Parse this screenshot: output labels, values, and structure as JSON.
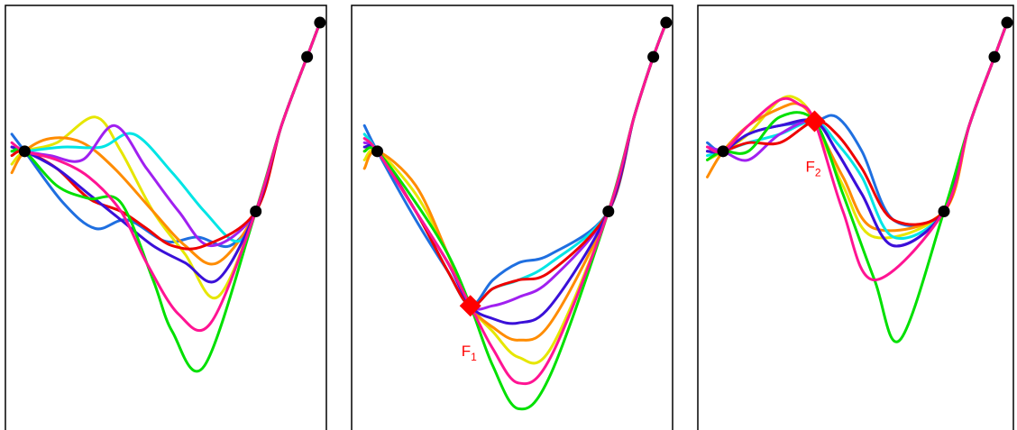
{
  "chart_data": [
    {
      "type": "line",
      "title": "",
      "xlabel": "",
      "ylabel": "",
      "xlim": [
        0,
        1
      ],
      "ylim": [
        0,
        1
      ],
      "grid": false,
      "observations": [
        {
          "x": 0.06,
          "y": 0.66
        },
        {
          "x": 0.78,
          "y": 0.52
        },
        {
          "x": 0.94,
          "y": 0.88
        },
        {
          "x": 0.98,
          "y": 0.96
        }
      ],
      "fantasized": [],
      "series": [
        {
          "color": "#1f6fe0",
          "x": [
            0.02,
            0.06,
            0.18,
            0.28,
            0.38,
            0.5,
            0.6,
            0.7,
            0.78,
            0.86,
            0.94,
            0.98
          ],
          "y": [
            0.7,
            0.66,
            0.54,
            0.48,
            0.5,
            0.45,
            0.46,
            0.44,
            0.52,
            0.72,
            0.88,
            0.96
          ]
        },
        {
          "color": "#e6e600",
          "x": [
            0.02,
            0.06,
            0.16,
            0.28,
            0.36,
            0.46,
            0.56,
            0.66,
            0.78,
            0.86,
            0.94,
            0.98
          ],
          "y": [
            0.63,
            0.66,
            0.68,
            0.74,
            0.66,
            0.52,
            0.42,
            0.32,
            0.52,
            0.72,
            0.88,
            0.96
          ]
        },
        {
          "color": "#ff8c00",
          "x": [
            0.02,
            0.06,
            0.14,
            0.24,
            0.34,
            0.46,
            0.56,
            0.66,
            0.78,
            0.86,
            0.94,
            0.98
          ],
          "y": [
            0.61,
            0.66,
            0.69,
            0.68,
            0.62,
            0.52,
            0.44,
            0.4,
            0.52,
            0.72,
            0.88,
            0.96
          ]
        },
        {
          "color": "#00e5e5",
          "x": [
            0.02,
            0.06,
            0.18,
            0.3,
            0.4,
            0.52,
            0.62,
            0.72,
            0.78,
            0.86,
            0.94,
            0.98
          ],
          "y": [
            0.66,
            0.66,
            0.67,
            0.67,
            0.7,
            0.61,
            0.52,
            0.45,
            0.52,
            0.72,
            0.88,
            0.96
          ]
        },
        {
          "color": "#a020f0",
          "x": [
            0.02,
            0.06,
            0.14,
            0.24,
            0.34,
            0.44,
            0.54,
            0.64,
            0.78,
            0.86,
            0.94,
            0.98
          ],
          "y": [
            0.67,
            0.66,
            0.65,
            0.64,
            0.72,
            0.62,
            0.52,
            0.44,
            0.52,
            0.72,
            0.88,
            0.96
          ]
        },
        {
          "color": "#ee0000",
          "x": [
            0.02,
            0.06,
            0.16,
            0.26,
            0.36,
            0.44,
            0.52,
            0.62,
            0.78,
            0.86,
            0.94,
            0.98
          ],
          "y": [
            0.65,
            0.66,
            0.62,
            0.55,
            0.52,
            0.48,
            0.44,
            0.44,
            0.52,
            0.72,
            0.88,
            0.96
          ]
        },
        {
          "color": "#3a10d8",
          "x": [
            0.02,
            0.06,
            0.16,
            0.26,
            0.36,
            0.46,
            0.56,
            0.66,
            0.78,
            0.86,
            0.94,
            0.98
          ],
          "y": [
            0.67,
            0.66,
            0.62,
            0.56,
            0.5,
            0.44,
            0.4,
            0.36,
            0.52,
            0.72,
            0.88,
            0.96
          ]
        },
        {
          "color": "#00e000",
          "x": [
            0.02,
            0.06,
            0.16,
            0.26,
            0.36,
            0.46,
            0.52,
            0.62,
            0.78,
            0.86,
            0.94,
            0.98
          ],
          "y": [
            0.66,
            0.66,
            0.58,
            0.55,
            0.54,
            0.36,
            0.24,
            0.16,
            0.52,
            0.72,
            0.88,
            0.96
          ]
        },
        {
          "color": "#ff1493",
          "x": [
            0.02,
            0.06,
            0.16,
            0.26,
            0.36,
            0.44,
            0.54,
            0.64,
            0.78,
            0.86,
            0.94,
            0.98
          ],
          "y": [
            0.68,
            0.66,
            0.64,
            0.6,
            0.52,
            0.4,
            0.28,
            0.26,
            0.52,
            0.72,
            0.88,
            0.96
          ]
        }
      ]
    },
    {
      "type": "line",
      "title": "",
      "xlabel": "",
      "ylabel": "",
      "xlim": [
        0,
        1
      ],
      "ylim": [
        0,
        1
      ],
      "grid": false,
      "observations": [
        {
          "x": 0.08,
          "y": 0.66
        },
        {
          "x": 0.8,
          "y": 0.52
        },
        {
          "x": 0.94,
          "y": 0.88
        },
        {
          "x": 0.98,
          "y": 0.96
        }
      ],
      "fantasized": [
        {
          "x": 0.37,
          "y": 0.3,
          "label_main": "F",
          "label_sub": "1"
        }
      ],
      "series": [
        {
          "color": "#1f6fe0",
          "x": [
            0.04,
            0.08,
            0.2,
            0.3,
            0.37,
            0.44,
            0.52,
            0.62,
            0.8,
            0.88,
            0.94,
            0.98
          ],
          "y": [
            0.72,
            0.66,
            0.5,
            0.38,
            0.3,
            0.36,
            0.4,
            0.42,
            0.52,
            0.74,
            0.88,
            0.96
          ]
        },
        {
          "color": "#e6e600",
          "x": [
            0.04,
            0.08,
            0.2,
            0.3,
            0.37,
            0.44,
            0.52,
            0.62,
            0.8,
            0.88,
            0.94,
            0.98
          ],
          "y": [
            0.64,
            0.66,
            0.56,
            0.42,
            0.3,
            0.24,
            0.18,
            0.2,
            0.52,
            0.74,
            0.88,
            0.96
          ]
        },
        {
          "color": "#ff8c00",
          "x": [
            0.04,
            0.08,
            0.2,
            0.3,
            0.37,
            0.44,
            0.52,
            0.62,
            0.8,
            0.88,
            0.94,
            0.98
          ],
          "y": [
            0.62,
            0.66,
            0.58,
            0.42,
            0.3,
            0.25,
            0.22,
            0.26,
            0.52,
            0.74,
            0.88,
            0.96
          ]
        },
        {
          "color": "#00e5e5",
          "x": [
            0.04,
            0.08,
            0.2,
            0.3,
            0.37,
            0.44,
            0.52,
            0.62,
            0.8,
            0.88,
            0.94,
            0.98
          ],
          "y": [
            0.7,
            0.66,
            0.52,
            0.38,
            0.3,
            0.34,
            0.36,
            0.4,
            0.52,
            0.74,
            0.88,
            0.96
          ]
        },
        {
          "color": "#a020f0",
          "x": [
            0.04,
            0.08,
            0.2,
            0.3,
            0.37,
            0.44,
            0.52,
            0.62,
            0.8,
            0.88,
            0.94,
            0.98
          ],
          "y": [
            0.68,
            0.66,
            0.52,
            0.4,
            0.3,
            0.3,
            0.32,
            0.36,
            0.52,
            0.74,
            0.88,
            0.96
          ]
        },
        {
          "color": "#ee0000",
          "x": [
            0.04,
            0.08,
            0.2,
            0.3,
            0.37,
            0.44,
            0.52,
            0.62,
            0.8,
            0.88,
            0.94,
            0.98
          ],
          "y": [
            0.66,
            0.66,
            0.52,
            0.38,
            0.3,
            0.34,
            0.36,
            0.38,
            0.52,
            0.74,
            0.88,
            0.96
          ]
        },
        {
          "color": "#3a10d8",
          "x": [
            0.04,
            0.08,
            0.2,
            0.3,
            0.37,
            0.44,
            0.52,
            0.62,
            0.8,
            0.88,
            0.94,
            0.98
          ],
          "y": [
            0.67,
            0.66,
            0.52,
            0.4,
            0.3,
            0.27,
            0.26,
            0.3,
            0.52,
            0.74,
            0.88,
            0.96
          ]
        },
        {
          "color": "#00e000",
          "x": [
            0.04,
            0.08,
            0.2,
            0.3,
            0.37,
            0.44,
            0.52,
            0.62,
            0.8,
            0.88,
            0.94,
            0.98
          ],
          "y": [
            0.66,
            0.66,
            0.54,
            0.42,
            0.3,
            0.16,
            0.06,
            0.14,
            0.52,
            0.74,
            0.88,
            0.96
          ]
        },
        {
          "color": "#ff1493",
          "x": [
            0.04,
            0.08,
            0.2,
            0.3,
            0.37,
            0.44,
            0.52,
            0.62,
            0.8,
            0.88,
            0.94,
            0.98
          ],
          "y": [
            0.69,
            0.66,
            0.52,
            0.4,
            0.3,
            0.2,
            0.12,
            0.18,
            0.52,
            0.74,
            0.88,
            0.96
          ]
        }
      ]
    },
    {
      "type": "line",
      "title": "",
      "xlabel": "",
      "ylabel": "",
      "xlim": [
        0,
        1
      ],
      "ylim": [
        0,
        1
      ],
      "grid": false,
      "observations": [
        {
          "x": 0.08,
          "y": 0.66
        },
        {
          "x": 0.78,
          "y": 0.52
        },
        {
          "x": 0.94,
          "y": 0.88
        },
        {
          "x": 0.98,
          "y": 0.96
        }
      ],
      "fantasized": [
        {
          "x": 0.37,
          "y": 0.73,
          "label_main": "F",
          "label_sub": "2"
        }
      ],
      "series": [
        {
          "color": "#1f6fe0",
          "x": [
            0.03,
            0.08,
            0.16,
            0.26,
            0.37,
            0.44,
            0.52,
            0.62,
            0.78,
            0.86,
            0.94,
            0.98
          ],
          "y": [
            0.68,
            0.66,
            0.7,
            0.72,
            0.73,
            0.74,
            0.66,
            0.5,
            0.52,
            0.72,
            0.88,
            0.96
          ]
        },
        {
          "color": "#e6e600",
          "x": [
            0.03,
            0.08,
            0.16,
            0.26,
            0.32,
            0.37,
            0.46,
            0.56,
            0.78,
            0.86,
            0.94,
            0.98
          ],
          "y": [
            0.64,
            0.66,
            0.7,
            0.78,
            0.78,
            0.73,
            0.58,
            0.46,
            0.52,
            0.72,
            0.88,
            0.96
          ]
        },
        {
          "color": "#ff8c00",
          "x": [
            0.03,
            0.08,
            0.16,
            0.26,
            0.32,
            0.37,
            0.46,
            0.56,
            0.78,
            0.86,
            0.94,
            0.98
          ],
          "y": [
            0.6,
            0.66,
            0.72,
            0.76,
            0.77,
            0.73,
            0.6,
            0.48,
            0.52,
            0.72,
            0.88,
            0.96
          ]
        },
        {
          "color": "#00e5e5",
          "x": [
            0.03,
            0.08,
            0.16,
            0.26,
            0.37,
            0.44,
            0.52,
            0.62,
            0.78,
            0.86,
            0.94,
            0.98
          ],
          "y": [
            0.65,
            0.66,
            0.68,
            0.7,
            0.73,
            0.68,
            0.6,
            0.46,
            0.52,
            0.72,
            0.88,
            0.96
          ]
        },
        {
          "color": "#a020f0",
          "x": [
            0.03,
            0.08,
            0.16,
            0.26,
            0.37,
            0.44,
            0.52,
            0.62,
            0.78,
            0.86,
            0.94,
            0.98
          ],
          "y": [
            0.67,
            0.66,
            0.64,
            0.7,
            0.73,
            0.66,
            0.56,
            0.44,
            0.52,
            0.72,
            0.88,
            0.96
          ]
        },
        {
          "color": "#ee0000",
          "x": [
            0.03,
            0.08,
            0.16,
            0.26,
            0.37,
            0.44,
            0.52,
            0.62,
            0.78,
            0.86,
            0.94,
            0.98
          ],
          "y": [
            0.66,
            0.66,
            0.68,
            0.68,
            0.73,
            0.7,
            0.62,
            0.5,
            0.52,
            0.72,
            0.88,
            0.96
          ]
        },
        {
          "color": "#3a10d8",
          "x": [
            0.03,
            0.08,
            0.16,
            0.26,
            0.37,
            0.44,
            0.52,
            0.62,
            0.78,
            0.86,
            0.94,
            0.98
          ],
          "y": [
            0.66,
            0.66,
            0.7,
            0.72,
            0.73,
            0.66,
            0.56,
            0.44,
            0.52,
            0.72,
            0.88,
            0.96
          ]
        },
        {
          "color": "#00e000",
          "x": [
            0.03,
            0.08,
            0.16,
            0.26,
            0.37,
            0.46,
            0.56,
            0.64,
            0.78,
            0.86,
            0.94,
            0.98
          ],
          "y": [
            0.64,
            0.66,
            0.66,
            0.74,
            0.73,
            0.56,
            0.36,
            0.22,
            0.52,
            0.72,
            0.88,
            0.96
          ]
        },
        {
          "color": "#ff1493",
          "x": [
            0.03,
            0.08,
            0.16,
            0.26,
            0.32,
            0.37,
            0.46,
            0.56,
            0.78,
            0.86,
            0.94,
            0.98
          ],
          "y": [
            0.67,
            0.66,
            0.72,
            0.78,
            0.77,
            0.73,
            0.52,
            0.36,
            0.52,
            0.72,
            0.88,
            0.96
          ]
        }
      ]
    }
  ]
}
